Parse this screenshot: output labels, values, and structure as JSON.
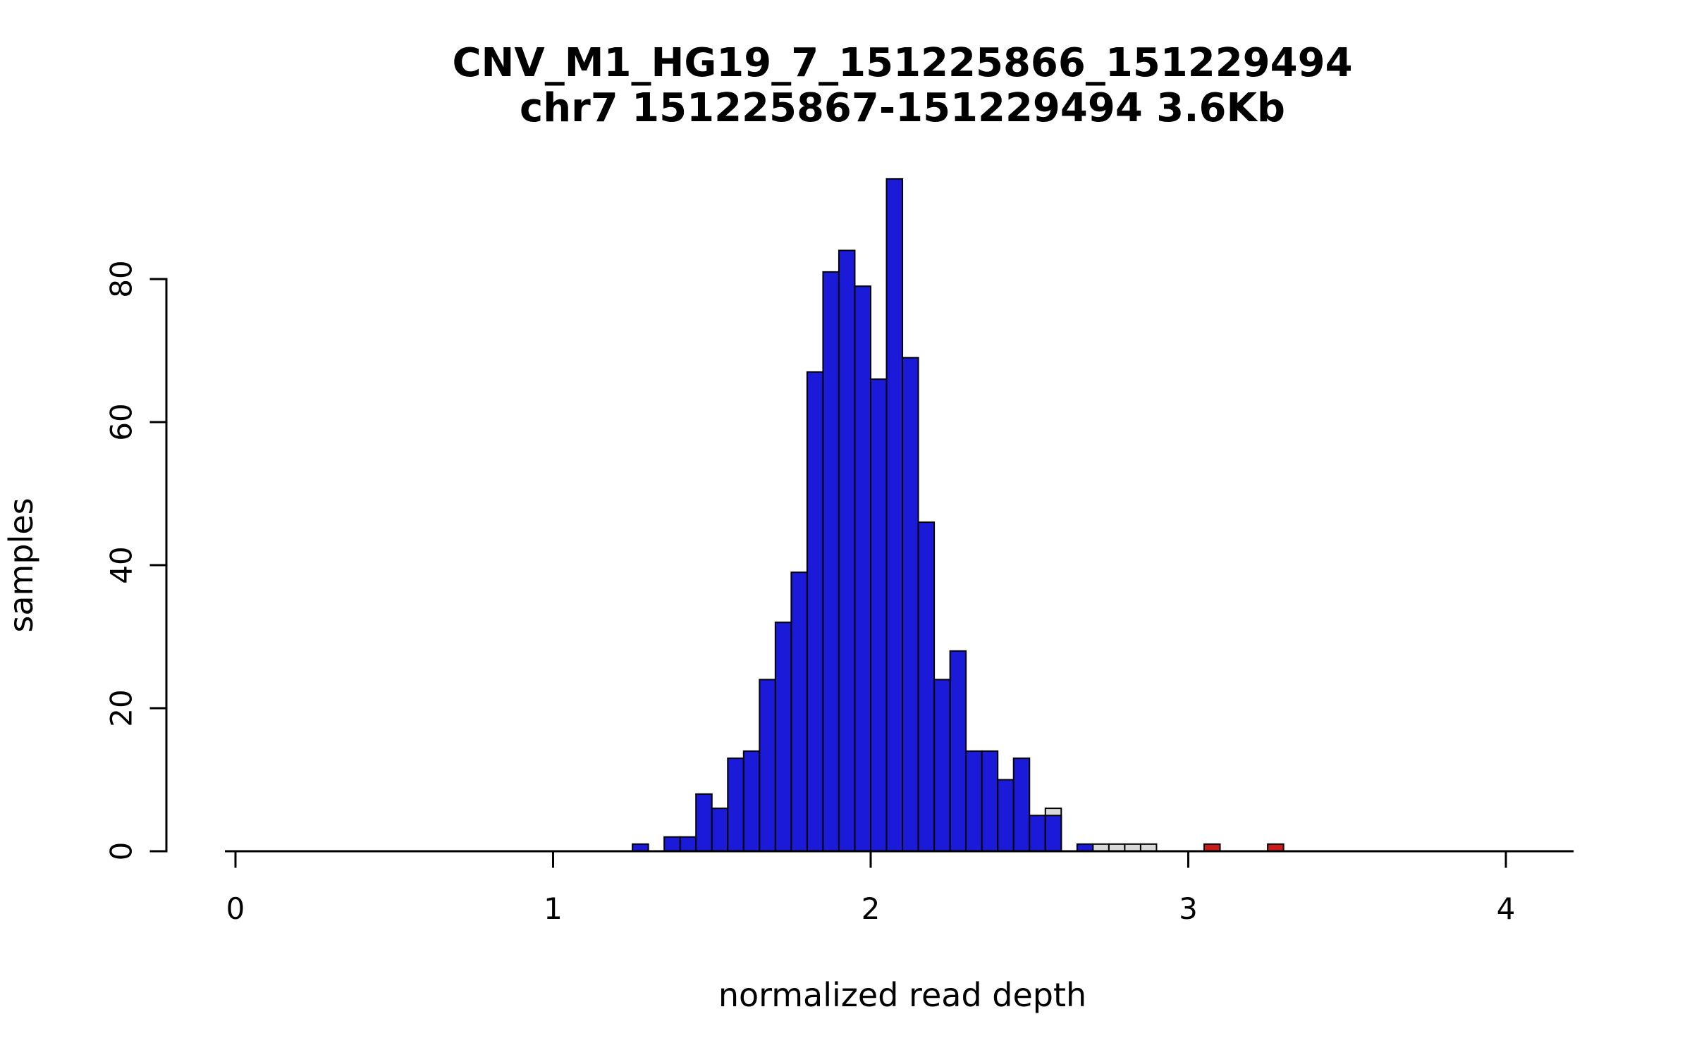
{
  "chart_data": {
    "type": "bar",
    "title": "CNV_M1_HG19_7_151225866_151229494",
    "subtitle": "chr7 151225867-151229494 3.6Kb",
    "xlabel": "normalized read depth",
    "ylabel": "samples",
    "xlim": [
      -0.03,
      4.21
    ],
    "ylim": [
      0,
      94
    ],
    "x_ticks": [
      0,
      1,
      2,
      3,
      4
    ],
    "y_ticks": [
      0,
      20,
      40,
      60,
      80
    ],
    "bin_width": 0.05,
    "grid": false,
    "legend": "none",
    "colors": {
      "blue": "#1a1ad8",
      "gray": "#d9d9d9",
      "red": "#cc1a1a",
      "stroke": "#000000"
    },
    "bars": [
      {
        "x": 1.25,
        "h": 1,
        "color": "blue"
      },
      {
        "x": 1.35,
        "h": 2,
        "color": "blue"
      },
      {
        "x": 1.4,
        "h": 2,
        "color": "blue"
      },
      {
        "x": 1.45,
        "h": 8,
        "color": "blue"
      },
      {
        "x": 1.5,
        "h": 6,
        "color": "blue"
      },
      {
        "x": 1.55,
        "h": 13,
        "color": "blue"
      },
      {
        "x": 1.6,
        "h": 14,
        "color": "blue"
      },
      {
        "x": 1.65,
        "h": 24,
        "color": "blue"
      },
      {
        "x": 1.7,
        "h": 32,
        "color": "blue"
      },
      {
        "x": 1.75,
        "h": 39,
        "color": "blue"
      },
      {
        "x": 1.8,
        "h": 67,
        "color": "blue"
      },
      {
        "x": 1.85,
        "h": 81,
        "color": "blue"
      },
      {
        "x": 1.9,
        "h": 84,
        "color": "blue"
      },
      {
        "x": 1.95,
        "h": 79,
        "color": "blue"
      },
      {
        "x": 2.0,
        "h": 66,
        "color": "blue"
      },
      {
        "x": 2.05,
        "h": 94,
        "color": "blue"
      },
      {
        "x": 2.1,
        "h": 69,
        "color": "blue"
      },
      {
        "x": 2.15,
        "h": 46,
        "color": "blue"
      },
      {
        "x": 2.2,
        "h": 24,
        "color": "blue"
      },
      {
        "x": 2.25,
        "h": 28,
        "color": "blue"
      },
      {
        "x": 2.3,
        "h": 14,
        "color": "blue"
      },
      {
        "x": 2.35,
        "h": 14,
        "color": "blue"
      },
      {
        "x": 2.4,
        "h": 10,
        "color": "blue"
      },
      {
        "x": 2.45,
        "h": 13,
        "color": "blue"
      },
      {
        "x": 2.5,
        "h": 5,
        "color": "blue"
      },
      {
        "x": 2.55,
        "h": 6,
        "color": "gray"
      },
      {
        "x": 2.55,
        "h": 5,
        "color": "blue"
      },
      {
        "x": 2.65,
        "h": 1,
        "color": "blue"
      },
      {
        "x": 2.7,
        "h": 1,
        "color": "gray"
      },
      {
        "x": 2.75,
        "h": 1,
        "color": "gray"
      },
      {
        "x": 2.8,
        "h": 1,
        "color": "gray"
      },
      {
        "x": 2.85,
        "h": 1,
        "color": "gray"
      },
      {
        "x": 3.05,
        "h": 1,
        "color": "red"
      },
      {
        "x": 3.25,
        "h": 1,
        "color": "red"
      }
    ]
  }
}
